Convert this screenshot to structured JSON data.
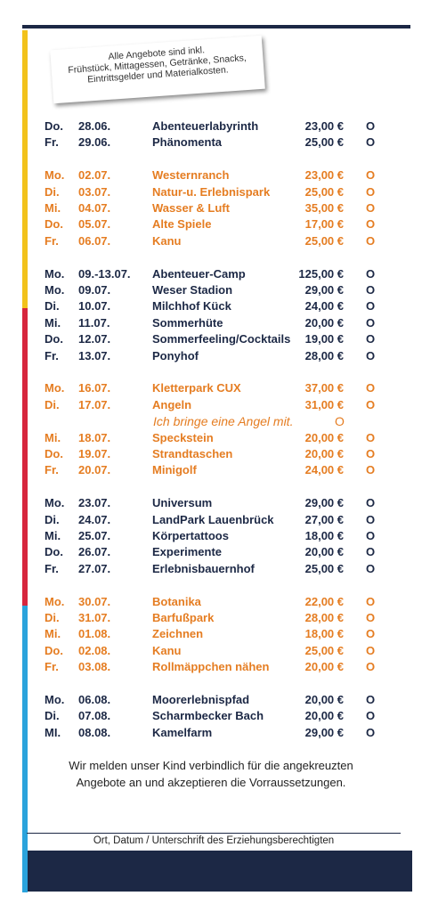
{
  "header": {
    "note_lines": [
      "Alle Angebote sind inkl.",
      "Frühstück, Mittagessen, Getränke, Snacks,",
      "Eintrittsgelder und Materialkosten."
    ]
  },
  "colors": {
    "dark": "#1c2845",
    "orange": "#e57d22"
  },
  "groups": [
    {
      "color": "dark",
      "rows": [
        {
          "day": "Do.",
          "date": "28.06.",
          "activity": "Abenteuerlabyrinth",
          "price": "23,00 €",
          "mark": "O"
        },
        {
          "day": "Fr.",
          "date": "29.06.",
          "activity": "Phänomenta",
          "price": "25,00 €",
          "mark": "O"
        }
      ]
    },
    {
      "color": "orange",
      "rows": [
        {
          "day": "Mo.",
          "date": "02.07.",
          "activity": "Westernranch",
          "price": "23,00 €",
          "mark": "O"
        },
        {
          "day": "Di.",
          "date": "03.07.",
          "activity": "Natur-u. Erlebnispark",
          "price": "25,00 €",
          "mark": "O"
        },
        {
          "day": "Mi.",
          "date": "04.07.",
          "activity": "Wasser & Luft",
          "price": "35,00 €",
          "mark": "O"
        },
        {
          "day": "Do.",
          "date": "05.07.",
          "activity": "Alte Spiele",
          "price": "17,00 €",
          "mark": "O"
        },
        {
          "day": "Fr.",
          "date": "06.07.",
          "activity": "Kanu",
          "price": "25,00 €",
          "mark": "O"
        }
      ]
    },
    {
      "color": "dark",
      "rows": [
        {
          "day": "Mo.",
          "date": "09.-13.07.",
          "activity": "Abenteuer-Camp",
          "price": "125,00 €",
          "mark": "O"
        },
        {
          "day": "Mo.",
          "date": "09.07.",
          "activity": "Weser Stadion",
          "price": "29,00 €",
          "mark": "O"
        },
        {
          "day": "Di.",
          "date": "10.07.",
          "activity": "Milchhof Kück",
          "price": "24,00 €",
          "mark": "O"
        },
        {
          "day": "Mi.",
          "date": "11.07.",
          "activity": "Sommerhüte",
          "price": "20,00 €",
          "mark": "O"
        },
        {
          "day": "Do.",
          "date": "12.07.",
          "activity": "Sommerfeeling/Cocktails",
          "price": "19,00 €",
          "mark": "O"
        },
        {
          "day": "Fr.",
          "date": "13.07.",
          "activity": "Ponyhof",
          "price": "28,00 €",
          "mark": "O"
        }
      ]
    },
    {
      "color": "orange",
      "rows": [
        {
          "day": "Mo.",
          "date": "16.07.",
          "activity": "Kletterpark CUX",
          "price": "37,00 €",
          "mark": "O"
        },
        {
          "day": "Di.",
          "date": "17.07.",
          "activity": "Angeln",
          "price": "31,00 €",
          "mark": "O"
        },
        {
          "note": "Ich bringe eine Angel mit.",
          "mark": "O"
        },
        {
          "day": "Mi.",
          "date": "18.07.",
          "activity": "Speckstein",
          "price": "20,00 €",
          "mark": "O"
        },
        {
          "day": "Do.",
          "date": "19.07.",
          "activity": "Strandtaschen",
          "price": "20,00 €",
          "mark": "O"
        },
        {
          "day": "Fr.",
          "date": "20.07.",
          "activity": "Minigolf",
          "price": "24,00 €",
          "mark": "O"
        }
      ]
    },
    {
      "color": "dark",
      "rows": [
        {
          "day": "Mo.",
          "date": "23.07.",
          "activity": "Universum",
          "price": "29,00 €",
          "mark": "O"
        },
        {
          "day": "Di.",
          "date": "24.07.",
          "activity": "LandPark Lauenbrück",
          "price": "27,00 €",
          "mark": "O"
        },
        {
          "day": "Mi.",
          "date": "25.07.",
          "activity": "Körpertattoos",
          "price": "18,00 €",
          "mark": "O"
        },
        {
          "day": "Do.",
          "date": "26.07.",
          "activity": "Experimente",
          "price": "20,00 €",
          "mark": "O"
        },
        {
          "day": "Fr.",
          "date": "27.07.",
          "activity": "Erlebnisbauernhof",
          "price": "25,00 €",
          "mark": "O"
        }
      ]
    },
    {
      "color": "orange",
      "rows": [
        {
          "day": "Mo.",
          "date": "30.07.",
          "activity": "Botanika",
          "price": "22,00 €",
          "mark": "O"
        },
        {
          "day": "Di.",
          "date": "31.07.",
          "activity": "Barfußpark",
          "price": "28,00 €",
          "mark": "O"
        },
        {
          "day": "Mi.",
          "date": "01.08.",
          "activity": "Zeichnen",
          "price": "18,00 €",
          "mark": "O"
        },
        {
          "day": "Do.",
          "date": "02.08.",
          "activity": "Kanu",
          "price": "25,00 €",
          "mark": "O"
        },
        {
          "day": "Fr.",
          "date": "03.08.",
          "activity": "Rollmäppchen nähen",
          "price": "20,00 €",
          "mark": "O"
        }
      ]
    },
    {
      "color": "dark",
      "rows": [
        {
          "day": "Mo.",
          "date": "06.08.",
          "activity": "Moorerlebnispfad",
          "price": "20,00 €",
          "mark": "O"
        },
        {
          "day": "Di.",
          "date": "07.08.",
          "activity": "Scharmbecker Bach",
          "price": "20,00 €",
          "mark": "O"
        },
        {
          "day": "MI.",
          "date": "08.08.",
          "activity": "Kamelfarm",
          "price": "29,00 €",
          "mark": "O"
        }
      ]
    }
  ],
  "footer": {
    "lines": [
      "Wir melden unser Kind verbindlich für die angekreuzten",
      "Angebote an und akzeptieren die Vorraussetzungen."
    ]
  },
  "signature": "Ort, Datum / Unterschrift des Erziehungsberechtigten"
}
